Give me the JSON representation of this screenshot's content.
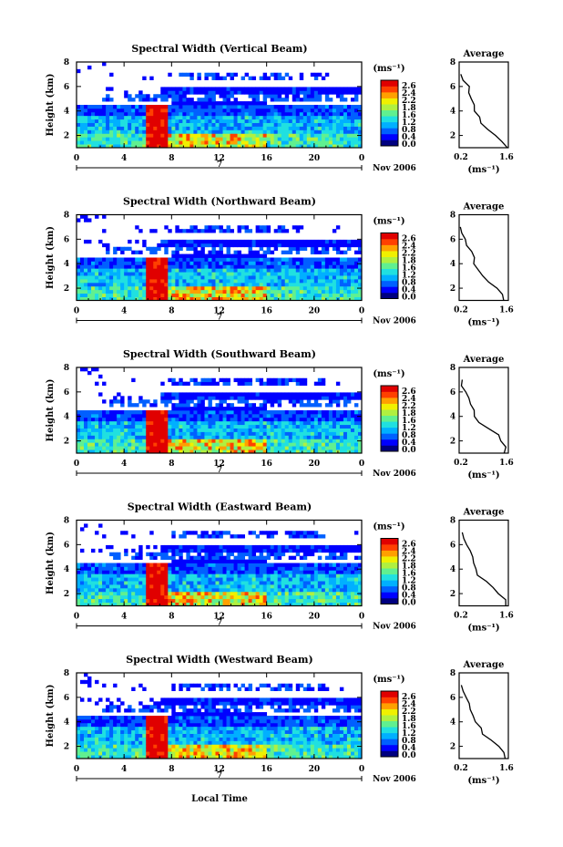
{
  "figure": {
    "time_axis_title": "Local Time",
    "date_label": "Nov 2006",
    "day_label": "7",
    "height_axis_label": "Height (km)",
    "colorbar_unit_label": "(ms⁻¹)",
    "profile_title": "Average",
    "profile_unit_label": "(ms⁻¹)"
  },
  "chart_data": [
    {
      "type": "heatmap",
      "title": "Spectral Width (Vertical Beam)",
      "xlabel": "",
      "ylabel": "Height (km)",
      "xlim": [
        0,
        24
      ],
      "ylim": [
        1,
        8
      ],
      "xticks": [
        "0",
        "4",
        "8",
        "12",
        "16",
        "20",
        "0"
      ],
      "yticks": [
        "2",
        "4",
        "6",
        "8"
      ],
      "colorbar": {
        "range": [
          0,
          2.8
        ],
        "ticks": [
          "2.6",
          "2.4",
          "2.2",
          "1.8",
          "1.6",
          "1.2",
          "0.8",
          "0.4",
          "0.0"
        ],
        "colors": [
          "#000080",
          "#0000ff",
          "#0060ff",
          "#00b0ff",
          "#20e0e0",
          "#60f090",
          "#b0f040",
          "#f0f000",
          "#ffa000",
          "#ff4000",
          "#e00000"
        ]
      },
      "profile": {
        "title": "Average",
        "xlabel": "(ms⁻¹)",
        "xlim": [
          0.2,
          1.6
        ],
        "xticks": [
          "0.2",
          "1.6"
        ],
        "yticks": [
          "2",
          "4",
          "6",
          "8"
        ],
        "heights": [
          1.0,
          1.5,
          2.0,
          2.5,
          3.0,
          3.5,
          4.0,
          4.5,
          5.0,
          5.5,
          6.0,
          6.5,
          7.0
        ],
        "values": [
          1.55,
          1.4,
          1.2,
          1.0,
          0.85,
          0.8,
          0.65,
          0.6,
          0.55,
          0.5,
          0.45,
          0.3,
          0.25
        ]
      }
    },
    {
      "type": "heatmap",
      "title": "Spectral Width (Northward Beam)",
      "xlabel": "",
      "ylabel": "Height (km)",
      "xlim": [
        0,
        24
      ],
      "ylim": [
        1,
        8
      ],
      "xticks": [
        "0",
        "4",
        "8",
        "12",
        "16",
        "20",
        "0"
      ],
      "yticks": [
        "2",
        "4",
        "6",
        "8"
      ],
      "colorbar": {
        "range": [
          0,
          2.8
        ],
        "ticks": [
          "2.6",
          "2.4",
          "2.2",
          "1.8",
          "1.6",
          "1.2",
          "0.8",
          "0.4",
          "0.0"
        ],
        "colors": [
          "#000080",
          "#0000ff",
          "#0060ff",
          "#00b0ff",
          "#20e0e0",
          "#60f090",
          "#b0f040",
          "#f0f000",
          "#ffa000",
          "#ff4000",
          "#e00000"
        ]
      },
      "profile": {
        "title": "Average",
        "xlabel": "(ms⁻¹)",
        "xlim": [
          0.2,
          1.6
        ],
        "xticks": [
          "0.2",
          "1.6"
        ],
        "yticks": [
          "2",
          "4",
          "6",
          "8"
        ],
        "heights": [
          1.0,
          1.5,
          2.0,
          2.5,
          3.0,
          3.5,
          4.0,
          4.5,
          5.0,
          5.5,
          6.0,
          6.5,
          7.0
        ],
        "values": [
          1.5,
          1.45,
          1.3,
          1.05,
          0.9,
          0.75,
          0.65,
          0.6,
          0.55,
          0.45,
          0.4,
          0.3,
          0.25
        ]
      }
    },
    {
      "type": "heatmap",
      "title": "Spectral Width (Southward Beam)",
      "xlabel": "",
      "ylabel": "Height (km)",
      "xlim": [
        0,
        24
      ],
      "ylim": [
        1,
        8
      ],
      "xticks": [
        "0",
        "4",
        "8",
        "12",
        "16",
        "20",
        "0"
      ],
      "yticks": [
        "2",
        "4",
        "6",
        "8"
      ],
      "colorbar": {
        "range": [
          0,
          2.8
        ],
        "ticks": [
          "2.6",
          "2.4",
          "2.2",
          "1.8",
          "1.6",
          "1.2",
          "0.8",
          "0.4",
          "0.0"
        ],
        "colors": [
          "#000080",
          "#0000ff",
          "#0060ff",
          "#00b0ff",
          "#20e0e0",
          "#60f090",
          "#b0f040",
          "#f0f000",
          "#ffa000",
          "#ff4000",
          "#e00000"
        ]
      },
      "profile": {
        "title": "Average",
        "xlabel": "(ms⁻¹)",
        "xlim": [
          0.2,
          1.6
        ],
        "xticks": [
          "0.2",
          "1.6"
        ],
        "yticks": [
          "2",
          "4",
          "6",
          "8"
        ],
        "heights": [
          1.0,
          1.5,
          2.0,
          2.5,
          3.0,
          3.5,
          4.0,
          4.5,
          5.0,
          5.5,
          6.0,
          6.5,
          7.0
        ],
        "values": [
          1.45,
          1.5,
          1.4,
          1.3,
          1.0,
          0.8,
          0.65,
          0.6,
          0.55,
          0.5,
          0.4,
          0.3,
          0.25
        ]
      }
    },
    {
      "type": "heatmap",
      "title": "Spectral Width (Eastward Beam)",
      "xlabel": "",
      "ylabel": "Height (km)",
      "xlim": [
        0,
        24
      ],
      "ylim": [
        1,
        8
      ],
      "xticks": [
        "0",
        "4",
        "8",
        "12",
        "16",
        "20",
        "0"
      ],
      "yticks": [
        "2",
        "4",
        "6",
        "8"
      ],
      "colorbar": {
        "range": [
          0,
          2.8
        ],
        "ticks": [
          "2.6",
          "2.4",
          "2.2",
          "1.8",
          "1.6",
          "1.2",
          "0.8",
          "0.4",
          "0.0"
        ],
        "colors": [
          "#000080",
          "#0000ff",
          "#0060ff",
          "#00b0ff",
          "#20e0e0",
          "#60f090",
          "#b0f040",
          "#f0f000",
          "#ffa000",
          "#ff4000",
          "#e00000"
        ]
      },
      "profile": {
        "title": "Average",
        "xlabel": "(ms⁻¹)",
        "xlim": [
          0.2,
          1.6
        ],
        "xticks": [
          "0.2",
          "1.6"
        ],
        "yticks": [
          "2",
          "4",
          "6",
          "8"
        ],
        "heights": [
          1.0,
          1.5,
          2.0,
          2.5,
          3.0,
          3.5,
          4.0,
          4.5,
          5.0,
          5.5,
          6.0,
          6.5,
          7.0
        ],
        "values": [
          1.5,
          1.55,
          1.35,
          1.2,
          0.95,
          0.75,
          0.65,
          0.6,
          0.55,
          0.5,
          0.4,
          0.3,
          0.25
        ]
      }
    },
    {
      "type": "heatmap",
      "title": "Spectral Width (Westward Beam)",
      "xlabel": "",
      "ylabel": "Height (km)",
      "xlim": [
        0,
        24
      ],
      "ylim": [
        1,
        8
      ],
      "xticks": [
        "0",
        "4",
        "8",
        "12",
        "16",
        "20",
        "0"
      ],
      "yticks": [
        "2",
        "4",
        "6",
        "8"
      ],
      "colorbar": {
        "range": [
          0,
          2.8
        ],
        "ticks": [
          "2.6",
          "2.4",
          "2.2",
          "1.8",
          "1.6",
          "1.2",
          "0.8",
          "0.4",
          "0.0"
        ],
        "colors": [
          "#000080",
          "#0000ff",
          "#0060ff",
          "#00b0ff",
          "#20e0e0",
          "#60f090",
          "#b0f040",
          "#f0f000",
          "#ffa000",
          "#ff4000",
          "#e00000"
        ]
      },
      "profile": {
        "title": "Average",
        "xlabel": "(ms⁻¹)",
        "xlim": [
          0.2,
          1.6
        ],
        "xticks": [
          "0.2",
          "1.6"
        ],
        "yticks": [
          "2",
          "4",
          "6",
          "8"
        ],
        "heights": [
          1.0,
          1.5,
          2.0,
          2.5,
          3.0,
          3.5,
          4.0,
          4.5,
          5.0,
          5.5,
          6.0,
          6.5,
          7.0
        ],
        "values": [
          1.5,
          1.45,
          1.3,
          1.1,
          0.9,
          0.8,
          0.65,
          0.6,
          0.55,
          0.5,
          0.4,
          0.3,
          0.25
        ]
      }
    }
  ]
}
